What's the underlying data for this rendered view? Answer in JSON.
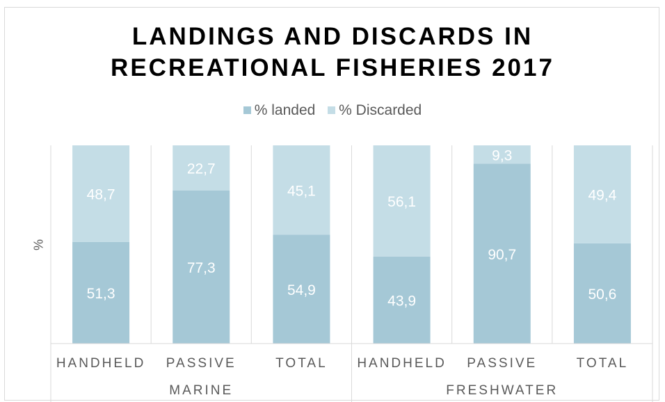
{
  "chart_data": {
    "type": "bar",
    "stacked": true,
    "title_lines": [
      "LANDINGS AND DISCARDS IN",
      "RECREATIONAL FISHERIES 2017"
    ],
    "ylabel": "%",
    "ylim": [
      0,
      100
    ],
    "legend_position": "top",
    "groups": [
      {
        "name": "MARINE",
        "categories": [
          "HANDHELD",
          "PASSIVE",
          "TOTAL"
        ]
      },
      {
        "name": "FRESHWATER",
        "categories": [
          "HANDHELD",
          "PASSIVE",
          "TOTAL"
        ]
      }
    ],
    "categories": [
      "HANDHELD",
      "PASSIVE",
      "TOTAL",
      "HANDHELD",
      "PASSIVE",
      "TOTAL"
    ],
    "series": [
      {
        "name": "% landed",
        "color": "#a5c8d6",
        "values": [
          51.3,
          77.3,
          54.9,
          43.9,
          90.7,
          50.6
        ],
        "labels": [
          "51,3",
          "77,3",
          "54,9",
          "43,9",
          "90,7",
          "50,6"
        ]
      },
      {
        "name": "% Discarded",
        "color": "#c4dde6",
        "values": [
          48.7,
          22.7,
          45.1,
          56.1,
          9.3,
          49.4
        ],
        "labels": [
          "48,7",
          "22,7",
          "45,1",
          "56,1",
          "9,3",
          "49,4"
        ]
      }
    ]
  }
}
